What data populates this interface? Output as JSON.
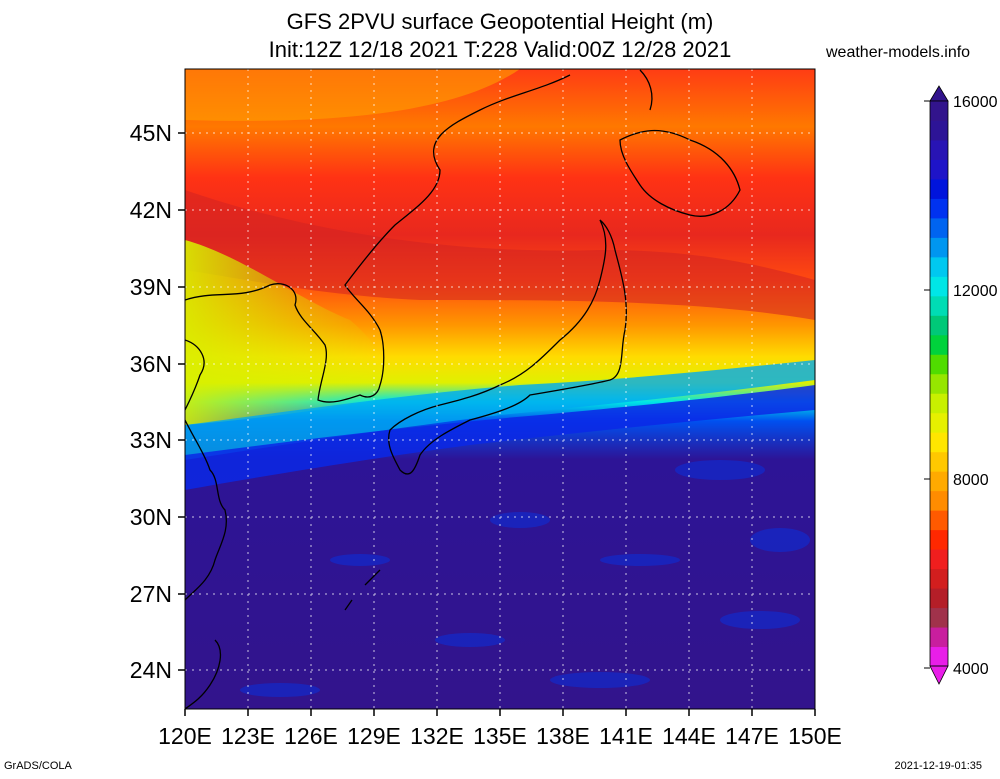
{
  "title": {
    "line1": "GFS 2PVU surface Geopotential Height (m)",
    "line2": "Init:12Z 12/18 2021 T:228 Valid:00Z 12/28 2021"
  },
  "source": "weather-models.info",
  "footer": {
    "left": "GrADS/COLA",
    "right": "2021-12-19-01:35"
  },
  "map": {
    "lon_ticks": [
      "120E",
      "123E",
      "126E",
      "129E",
      "132E",
      "135E",
      "138E",
      "141E",
      "144E",
      "147E",
      "150E"
    ],
    "lat_ticks": [
      "24N",
      "27N",
      "30N",
      "33N",
      "36N",
      "39N",
      "42N",
      "45N"
    ],
    "lon_range": [
      120,
      150
    ],
    "lat_range": [
      22.5,
      47.5
    ]
  },
  "colorbar": {
    "labels": [
      "4000",
      "8000",
      "12000",
      "16000"
    ],
    "range": [
      4000,
      16000
    ],
    "colors": [
      "#e81ee8",
      "#c81e9e",
      "#a0324b",
      "#b41e28",
      "#d21e1e",
      "#f01e1e",
      "#ff2800",
      "#ff5a00",
      "#ff8c00",
      "#ffaa00",
      "#ffc800",
      "#ffe600",
      "#e6f000",
      "#c8f000",
      "#96e600",
      "#50dc00",
      "#00d23c",
      "#00c878",
      "#00dcb4",
      "#00e6e6",
      "#00c8f0",
      "#0096f0",
      "#0064f0",
      "#0032f0",
      "#0014dc",
      "#1e14c8",
      "#2814b4",
      "#2d1496",
      "#32148c"
    ]
  }
}
